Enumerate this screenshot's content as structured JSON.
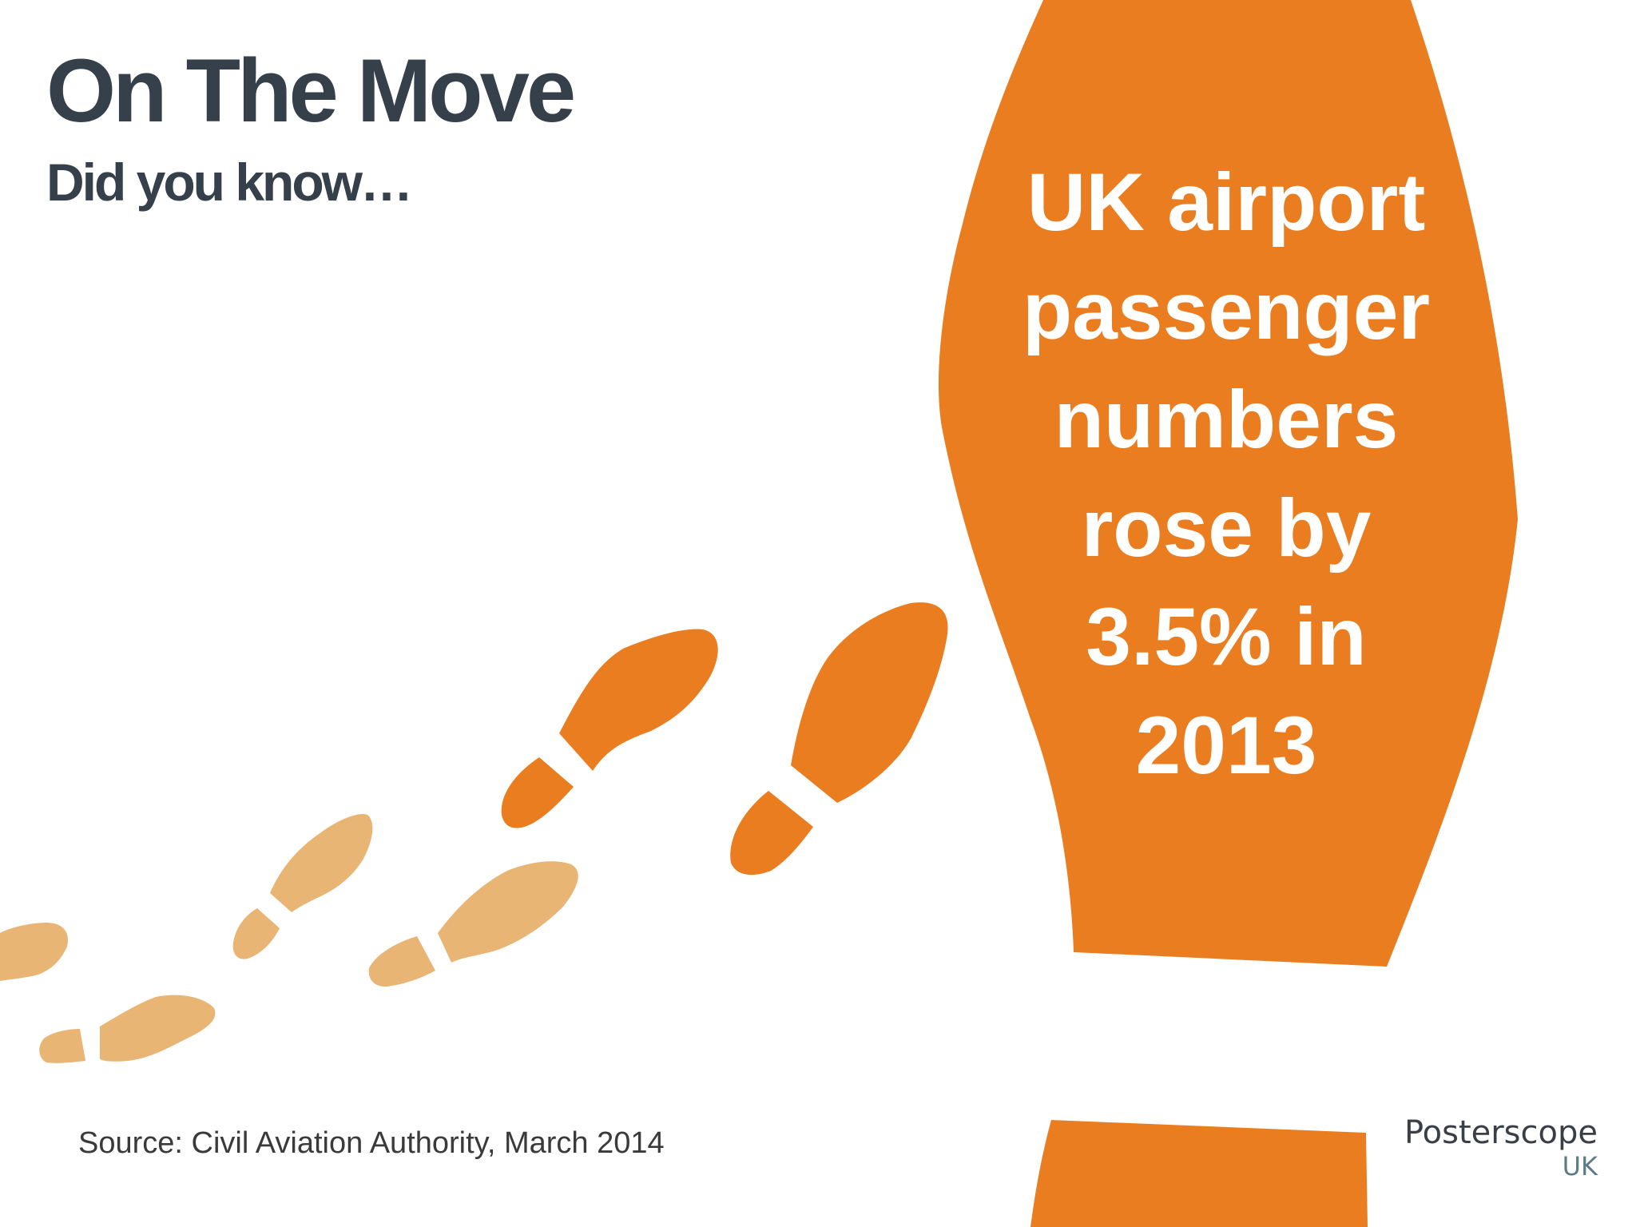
{
  "header": {
    "title": "On The Move",
    "subtitle": "Did you know…"
  },
  "fact": {
    "lines": [
      "UK airport",
      "passenger",
      "numbers",
      "rose by",
      "3.5% in",
      "2013"
    ]
  },
  "footer": {
    "source": "Source: Civil Aviation Authority, March 2014"
  },
  "logo": {
    "wordmark": "Posterscope",
    "region": "UK"
  },
  "colors": {
    "primary_orange": "#e97d20",
    "light_orange": "#e9b574",
    "title_text": "#36404a",
    "background": "#ffffff"
  },
  "illustration": {
    "description_icons": [
      "big-footprint-icon",
      "footprint-icon"
    ]
  }
}
